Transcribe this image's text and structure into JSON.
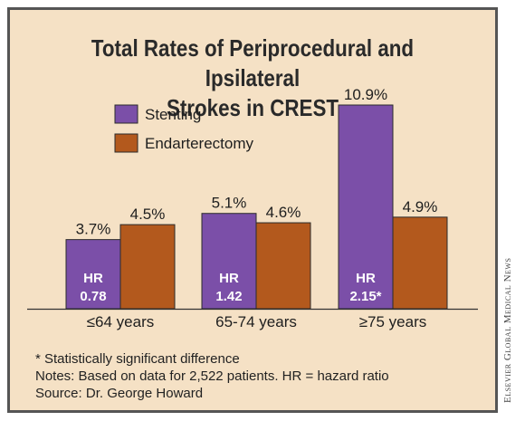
{
  "title_lines": [
    "Total Rates of Periprocedural and Ipsilateral",
    "Strokes in CREST"
  ],
  "chart_data": {
    "type": "bar",
    "title": "Total Rates of Periprocedural and Ipsilateral Strokes in CREST",
    "categories": [
      "≤64 years",
      "65-74 years",
      "≥75 years"
    ],
    "series": [
      {
        "name": "Stenting",
        "color": "#7b4fa8",
        "values": [
          3.7,
          5.1,
          10.9
        ],
        "labels": [
          "3.7%",
          "5.1%",
          "10.9%"
        ]
      },
      {
        "name": "Endarterectomy",
        "color": "#b3591d",
        "values": [
          4.5,
          4.6,
          4.9
        ],
        "labels": [
          "4.5%",
          "4.6%",
          "4.9%"
        ]
      }
    ],
    "hazard_ratios": [
      {
        "label": "HR",
        "value": "0.78"
      },
      {
        "label": "HR",
        "value": "1.42"
      },
      {
        "label": "HR",
        "value": "2.15*"
      }
    ],
    "ylim": [
      0,
      10.9
    ],
    "legend_position": "top-left",
    "grid": false
  },
  "notes": [
    "* Statistically significant difference",
    "Notes: Based on data for 2,522 patients. HR = hazard ratio",
    "Source: Dr. George Howard"
  ],
  "credit": "Elsevier Global Medical News"
}
